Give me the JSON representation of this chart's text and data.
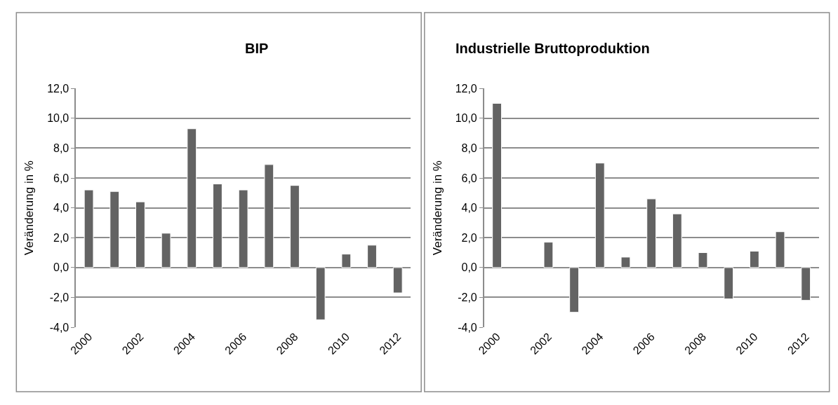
{
  "chart_data": [
    {
      "type": "bar",
      "title": "BIP",
      "ylabel": "Veränderung in %",
      "categories": [
        "2000",
        null,
        "2002",
        null,
        "2004",
        null,
        "2006",
        null,
        "2008",
        null,
        "2010",
        null,
        "2012"
      ],
      "values": [
        5.2,
        5.1,
        4.4,
        2.3,
        9.3,
        5.6,
        5.2,
        6.9,
        5.5,
        -3.5,
        0.9,
        1.5,
        -1.7
      ],
      "color": "#636363",
      "ylim": [
        -4,
        12
      ],
      "yticks": [
        {
          "value": -4,
          "label": "-4,0"
        },
        {
          "value": -2,
          "label": "-2,0"
        },
        {
          "value": 0,
          "label": "0,0"
        },
        {
          "value": 2,
          "label": "2,0"
        },
        {
          "value": 4,
          "label": "4,0"
        },
        {
          "value": 6,
          "label": "6,0"
        },
        {
          "value": 8,
          "label": "8,0"
        },
        {
          "value": 10,
          "label": "10,0"
        },
        {
          "value": 12,
          "label": "12,0"
        }
      ],
      "grid": "y"
    },
    {
      "type": "bar",
      "title": "Industrielle Bruttoproduktion",
      "ylabel": "Veränderung in %",
      "categories": [
        "2000",
        null,
        "2002",
        null,
        "2004",
        null,
        "2006",
        null,
        "2008",
        null,
        "2010",
        null,
        "2012"
      ],
      "values": [
        11.0,
        null,
        1.7,
        -3.0,
        7.0,
        0.7,
        4.6,
        3.6,
        1.0,
        -2.1,
        1.1,
        2.4,
        -2.2
      ],
      "color": "#636363",
      "ylim": [
        -4,
        12
      ],
      "yticks": [
        {
          "value": -4,
          "label": "-4,0"
        },
        {
          "value": -2,
          "label": "-2,0"
        },
        {
          "value": 0,
          "label": "0,0"
        },
        {
          "value": 2,
          "label": "2,0"
        },
        {
          "value": 4,
          "label": "4,0"
        },
        {
          "value": 6,
          "label": "6,0"
        },
        {
          "value": 8,
          "label": "8,0"
        },
        {
          "value": 10,
          "label": "10,0"
        },
        {
          "value": 12,
          "label": "12,0"
        }
      ],
      "grid": "y"
    }
  ]
}
